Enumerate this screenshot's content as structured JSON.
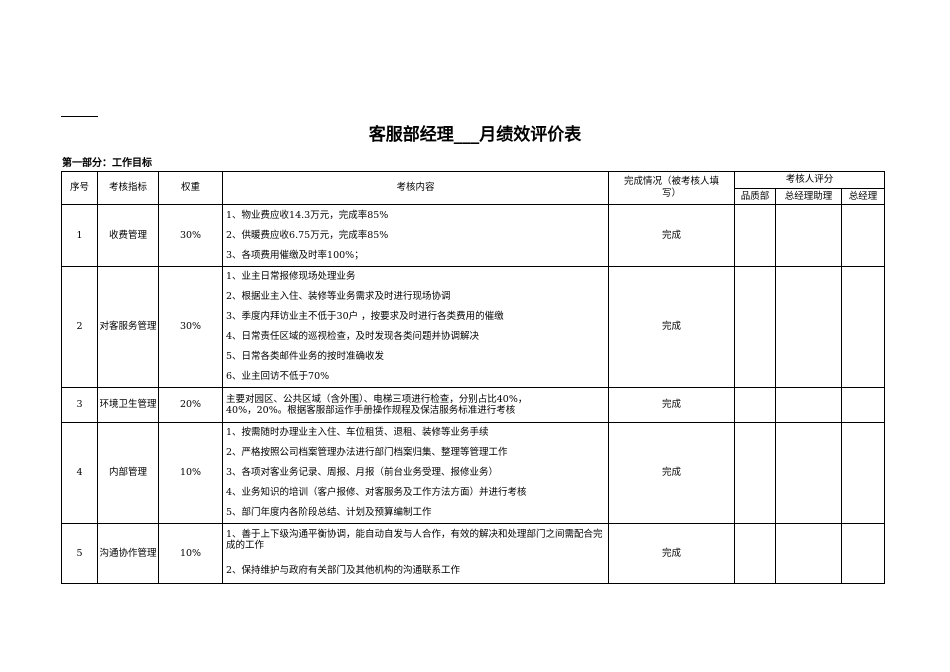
{
  "title": "客服部经理___月绩效评价表",
  "section": "第一部分：工作目标",
  "headers": {
    "no": "序号",
    "indicator": "考核指标",
    "weight": "权重",
    "content": "考核内容",
    "completion": "完成情况（被考核人填写）",
    "reviewer_score": "考核人评分",
    "quality_dept": "品质部",
    "gm_assistant": "总经理助理",
    "gm": "总经理"
  },
  "rows": [
    {
      "no": "1",
      "indicator": "收费管理",
      "weight": "30%",
      "status": "完成",
      "items": [
        "1、物业费应收14.3万元，完成率85%",
        "2、供暖费应收6.75万元，完成率85%",
        "3、各项费用催缴及时率100%；"
      ]
    },
    {
      "no": "2",
      "indicator": "对客服务管理",
      "weight": "30%",
      "status": "完成",
      "items": [
        "1、业主日常报修现场处理业务",
        "2、根据业主入住、装修等业务需求及时进行现场协调",
        "3、季度内拜访业主不低于30户 ，按要求及时进行各类费用的催缴",
        "4、日常责任区域的巡视检查，及时发现各类问题并协调解决",
        "5、日常各类邮件业务的按时准确收发",
        "6、业主回访不低于70%"
      ]
    },
    {
      "no": "3",
      "indicator": "环境卫生管理",
      "weight": "20%",
      "status": "完成",
      "items": [
        "主要对园区、公共区域（含外围）、电梯三项进行检查，分别占比40%，40%，20%。根据客服部运作手册操作规程及保洁服务标准进行考核"
      ]
    },
    {
      "no": "4",
      "indicator": "内部管理",
      "weight": "10%",
      "status": "完成",
      "items": [
        "1、按需随时办理业主入住、车位租赁、退租、装修等业务手续",
        "2、严格按照公司档案管理办法进行部门档案归集、整理等管理工作",
        "3、各项对客业务记录、周报、月报（前台业务受理、报修业务）",
        "4、业务知识的培训（客户报修、对客服务及工作方法方面）并进行考核",
        "5、部门年度内各阶段总结、计划及预算编制工作"
      ]
    },
    {
      "no": "5",
      "indicator": "沟通协作管理",
      "weight": "10%",
      "status": "完成",
      "items": [
        "1、善于上下级沟通平衡协调，能自动自发与人合作，有效的解决和处理部门之间需配合完成的工作",
        "2、保持维护与政府有关部门及其他机构的沟通联系工作"
      ]
    }
  ]
}
